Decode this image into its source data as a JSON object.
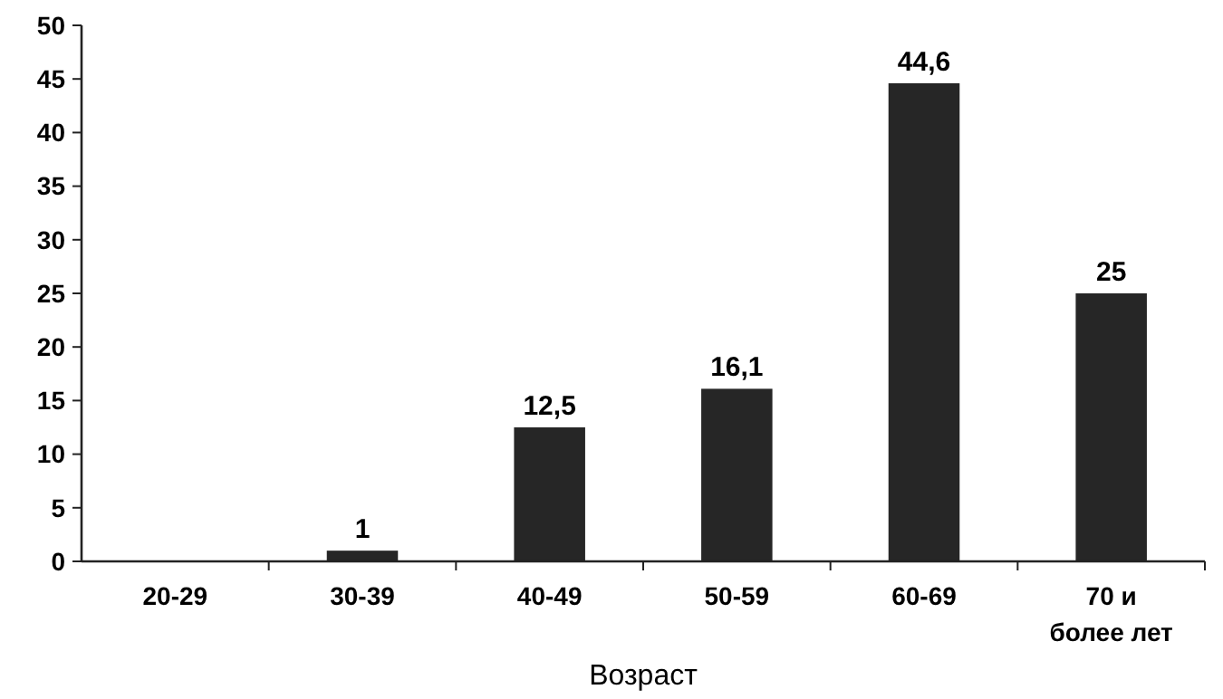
{
  "chart_data": {
    "type": "bar",
    "xlabel": "Возраст",
    "categories": [
      "20-29",
      "30-39",
      "40-49",
      "50-59",
      "60-69",
      "70 и более лет"
    ],
    "values": [
      0,
      1,
      12.5,
      16.1,
      44.6,
      25
    ],
    "value_labels": [
      null,
      "1",
      "12,5",
      "16,1",
      "44,6",
      "25"
    ],
    "color": "#262626",
    "ylim": [
      0,
      50
    ],
    "yticks": [
      0,
      5,
      10,
      15,
      20,
      25,
      30,
      35,
      40,
      45,
      50
    ],
    "grid": false
  }
}
